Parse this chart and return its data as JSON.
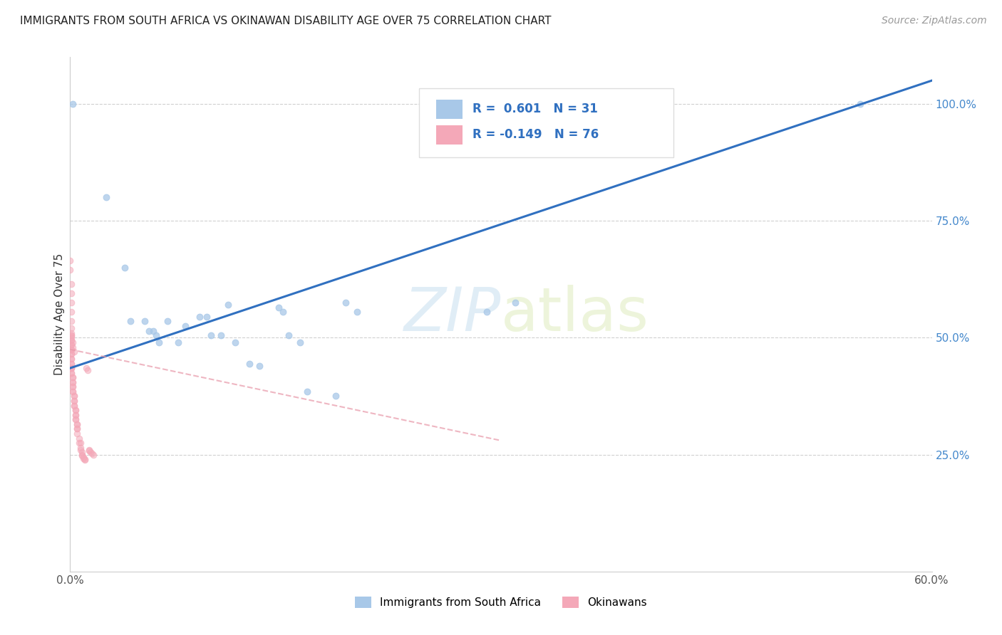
{
  "title": "IMMIGRANTS FROM SOUTH AFRICA VS OKINAWAN DISABILITY AGE OVER 75 CORRELATION CHART",
  "source": "Source: ZipAtlas.com",
  "ylabel": "Disability Age Over 75",
  "xlim": [
    0.0,
    0.6
  ],
  "ylim": [
    0.0,
    1.1
  ],
  "yticks_right": [
    0.25,
    0.5,
    0.75,
    1.0
  ],
  "ytick_right_labels": [
    "25.0%",
    "50.0%",
    "75.0%",
    "100.0%"
  ],
  "blue_R": 0.601,
  "blue_N": 31,
  "pink_R": -0.149,
  "pink_N": 76,
  "blue_color": "#a8c8e8",
  "pink_color": "#f4a8b8",
  "trendline_blue": "#3070c0",
  "trendline_pink": "#e898a8",
  "legend_R_color": "#3070c0",
  "watermark_zip": "ZIP",
  "watermark_atlas": "atlas",
  "blue_scatter": [
    [
      0.002,
      1.0
    ],
    [
      0.025,
      0.8
    ],
    [
      0.038,
      0.65
    ],
    [
      0.042,
      0.535
    ],
    [
      0.052,
      0.535
    ],
    [
      0.055,
      0.515
    ],
    [
      0.058,
      0.515
    ],
    [
      0.06,
      0.505
    ],
    [
      0.062,
      0.49
    ],
    [
      0.068,
      0.535
    ],
    [
      0.075,
      0.49
    ],
    [
      0.08,
      0.525
    ],
    [
      0.09,
      0.545
    ],
    [
      0.095,
      0.545
    ],
    [
      0.098,
      0.505
    ],
    [
      0.105,
      0.505
    ],
    [
      0.11,
      0.57
    ],
    [
      0.115,
      0.49
    ],
    [
      0.125,
      0.445
    ],
    [
      0.132,
      0.44
    ],
    [
      0.145,
      0.565
    ],
    [
      0.148,
      0.555
    ],
    [
      0.152,
      0.505
    ],
    [
      0.16,
      0.49
    ],
    [
      0.165,
      0.385
    ],
    [
      0.185,
      0.375
    ],
    [
      0.192,
      0.575
    ],
    [
      0.2,
      0.555
    ],
    [
      0.29,
      0.555
    ],
    [
      0.31,
      0.575
    ],
    [
      0.55,
      1.0
    ]
  ],
  "pink_scatter": [
    [
      0.0,
      0.665
    ],
    [
      0.0,
      0.645
    ],
    [
      0.001,
      0.615
    ],
    [
      0.001,
      0.595
    ],
    [
      0.001,
      0.575
    ],
    [
      0.001,
      0.555
    ],
    [
      0.001,
      0.535
    ],
    [
      0.001,
      0.52
    ],
    [
      0.001,
      0.505
    ],
    [
      0.001,
      0.505
    ],
    [
      0.001,
      0.495
    ],
    [
      0.001,
      0.495
    ],
    [
      0.001,
      0.485
    ],
    [
      0.001,
      0.485
    ],
    [
      0.001,
      0.475
    ],
    [
      0.001,
      0.475
    ],
    [
      0.001,
      0.465
    ],
    [
      0.001,
      0.465
    ],
    [
      0.001,
      0.455
    ],
    [
      0.001,
      0.455
    ],
    [
      0.001,
      0.445
    ],
    [
      0.001,
      0.445
    ],
    [
      0.001,
      0.435
    ],
    [
      0.001,
      0.435
    ],
    [
      0.001,
      0.435
    ],
    [
      0.001,
      0.425
    ],
    [
      0.001,
      0.425
    ],
    [
      0.002,
      0.415
    ],
    [
      0.002,
      0.415
    ],
    [
      0.002,
      0.405
    ],
    [
      0.002,
      0.405
    ],
    [
      0.002,
      0.395
    ],
    [
      0.002,
      0.395
    ],
    [
      0.002,
      0.385
    ],
    [
      0.002,
      0.385
    ],
    [
      0.003,
      0.375
    ],
    [
      0.003,
      0.375
    ],
    [
      0.003,
      0.365
    ],
    [
      0.003,
      0.365
    ],
    [
      0.003,
      0.355
    ],
    [
      0.003,
      0.355
    ],
    [
      0.004,
      0.345
    ],
    [
      0.004,
      0.345
    ],
    [
      0.004,
      0.335
    ],
    [
      0.004,
      0.335
    ],
    [
      0.004,
      0.325
    ],
    [
      0.004,
      0.325
    ],
    [
      0.005,
      0.315
    ],
    [
      0.005,
      0.315
    ],
    [
      0.005,
      0.305
    ],
    [
      0.005,
      0.305
    ],
    [
      0.005,
      0.295
    ],
    [
      0.006,
      0.285
    ],
    [
      0.006,
      0.275
    ],
    [
      0.007,
      0.275
    ],
    [
      0.007,
      0.265
    ],
    [
      0.007,
      0.26
    ],
    [
      0.008,
      0.255
    ],
    [
      0.008,
      0.25
    ],
    [
      0.008,
      0.248
    ],
    [
      0.009,
      0.245
    ],
    [
      0.009,
      0.242
    ],
    [
      0.01,
      0.24
    ],
    [
      0.01,
      0.238
    ],
    [
      0.011,
      0.435
    ],
    [
      0.012,
      0.43
    ],
    [
      0.013,
      0.26
    ],
    [
      0.013,
      0.258
    ],
    [
      0.014,
      0.255
    ],
    [
      0.015,
      0.252
    ],
    [
      0.016,
      0.25
    ],
    [
      0.001,
      0.51
    ],
    [
      0.001,
      0.5
    ],
    [
      0.002,
      0.49
    ],
    [
      0.002,
      0.48
    ],
    [
      0.003,
      0.47
    ]
  ]
}
